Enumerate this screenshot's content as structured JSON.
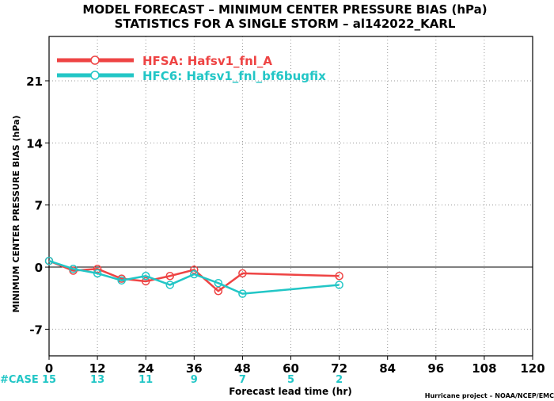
{
  "chart_data": {
    "type": "line",
    "title_line1": "MODEL FORECAST – MINIMUM CENTER PRESSURE BIAS (hPa)",
    "title_line2": "STATISTICS FOR A SINGLE STORM – al142022_KARL",
    "xlabel": "Forecast lead time (hr)",
    "ylabel": "MINIMUM CENTER PRESSURE BIAS (hPa)",
    "xlim": [
      0,
      120
    ],
    "ylim": [
      -10,
      26
    ],
    "xticks": [
      0,
      12,
      24,
      36,
      48,
      60,
      72,
      84,
      96,
      108,
      120
    ],
    "yticks": [
      -7,
      0,
      7,
      14,
      21
    ],
    "zero_line": 0,
    "grid": "dotted",
    "legend_position": "top-left",
    "series": [
      {
        "name": "HFSA: Hafsv1_fnl_A",
        "color": "#ee4444",
        "x": [
          0,
          6,
          12,
          18,
          24,
          30,
          36,
          42,
          48,
          72
        ],
        "y": [
          0.7,
          -0.4,
          -0.2,
          -1.3,
          -1.6,
          -1.0,
          -0.3,
          -2.7,
          -0.7,
          -1.0
        ]
      },
      {
        "name": "HFC6: Hafsv1_fnl_bf6bugfix",
        "color": "#22c6c6",
        "x": [
          0,
          6,
          12,
          18,
          24,
          30,
          36,
          42,
          48,
          72
        ],
        "y": [
          0.7,
          -0.2,
          -0.7,
          -1.5,
          -1.0,
          -2.0,
          -0.8,
          -1.8,
          -3.0,
          -2.0
        ]
      }
    ],
    "case_label": "#CASE",
    "case_color": "#22c6c6",
    "cases": [
      {
        "x": 0,
        "n": "15"
      },
      {
        "x": 12,
        "n": "13"
      },
      {
        "x": 24,
        "n": "11"
      },
      {
        "x": 36,
        "n": "9"
      },
      {
        "x": 48,
        "n": "7"
      },
      {
        "x": 60,
        "n": "5"
      },
      {
        "x": 72,
        "n": "2"
      }
    ],
    "credit": "Hurricane project – NOAA/NCEP/EMC"
  }
}
